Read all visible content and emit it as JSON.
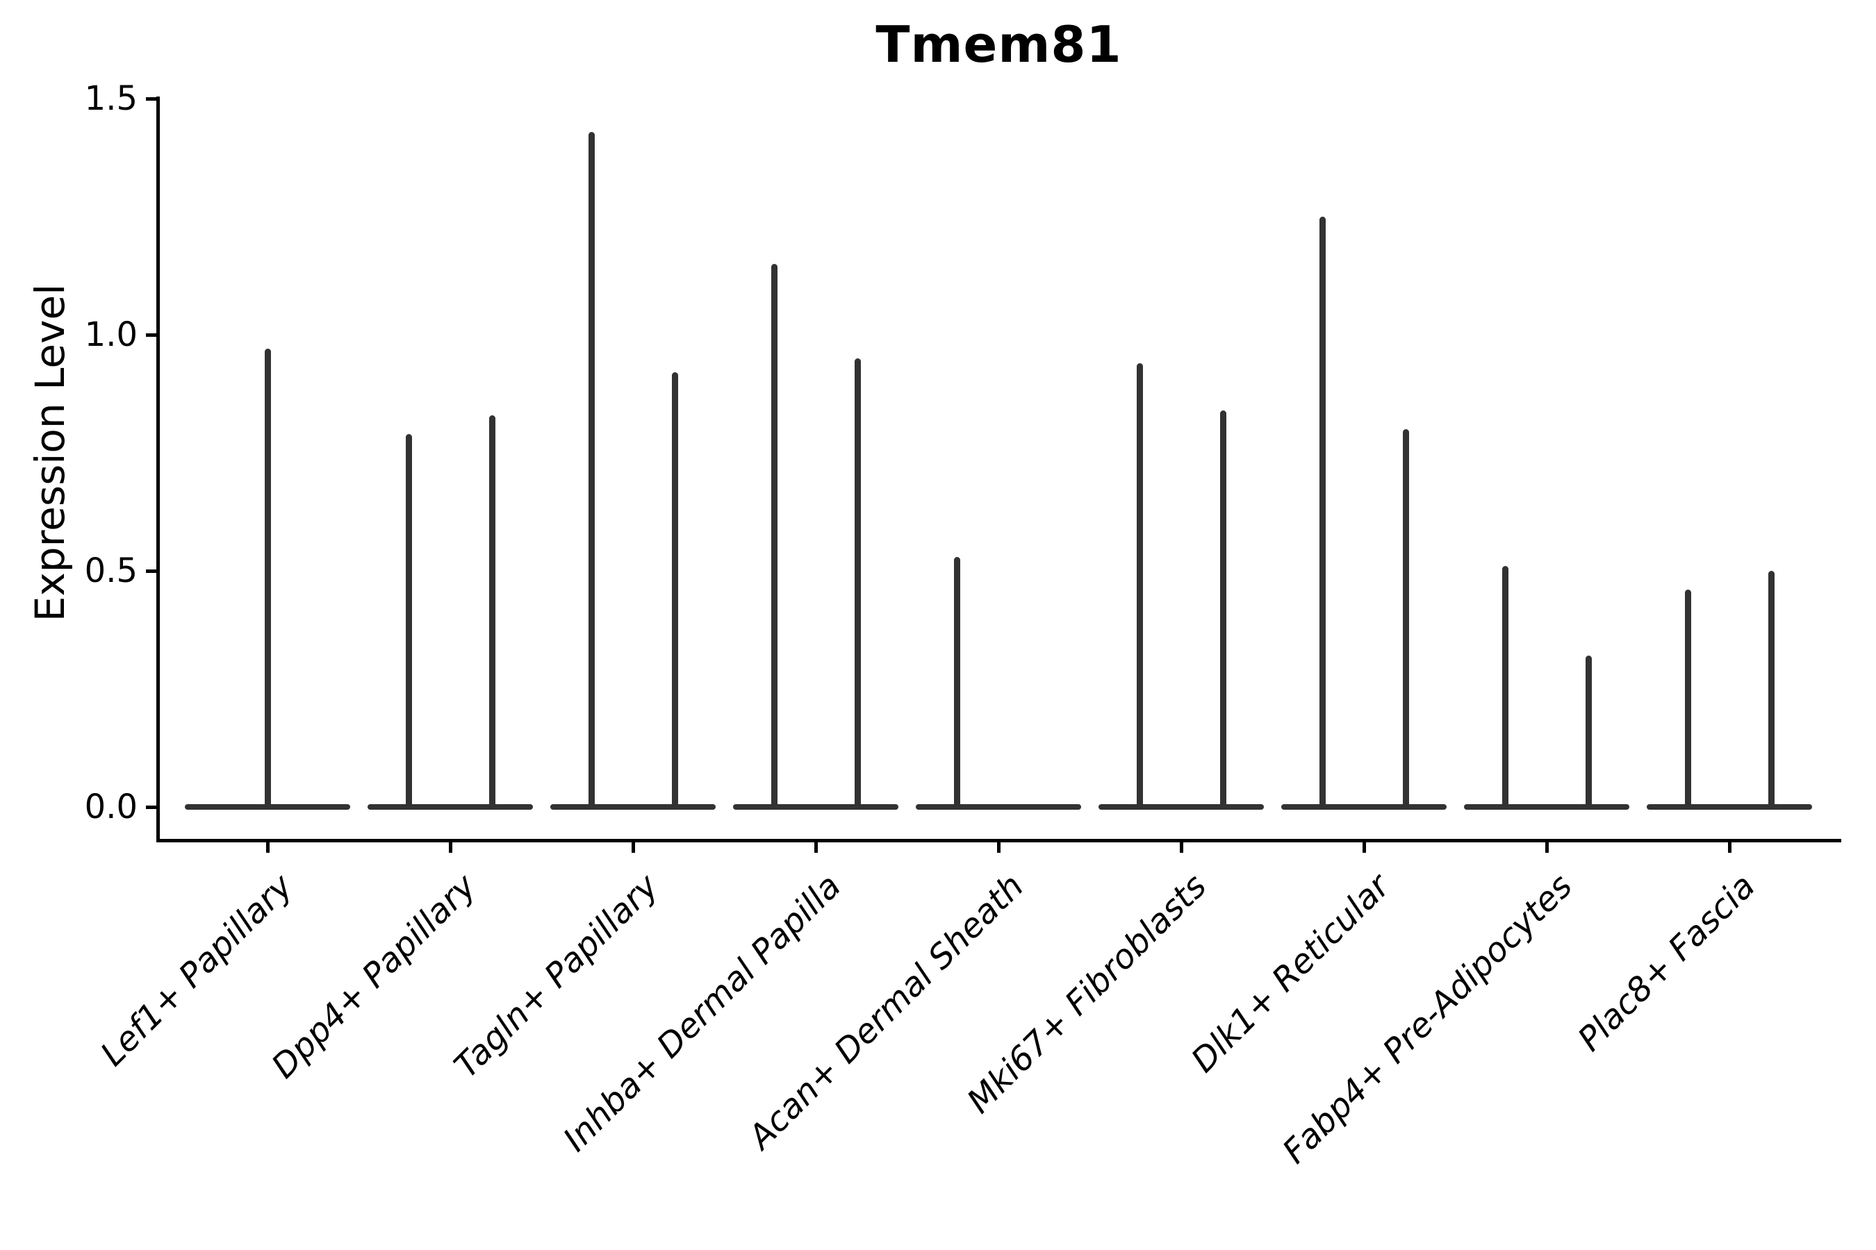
{
  "title": "Tmem81",
  "chart_data": {
    "type": "violin",
    "title": "Tmem81",
    "xlabel": "",
    "ylabel": "Expression Level",
    "ylim": [
      0,
      1.5
    ],
    "yticks": [
      0.0,
      0.5,
      1.0,
      1.5
    ],
    "ytick_labels": [
      "0.0",
      "0.5",
      "1.0",
      "1.5"
    ],
    "grid": false,
    "legend_position": "none",
    "background_color": "#ffffff",
    "axis_color": "#000000",
    "ink_color": "#323232",
    "categories": [
      "Lef1+ Papillary",
      "Dpp4+ Papillary",
      "Tagln+ Papillary",
      "Inhba+ Dermal Papilla",
      "Acan+ Dermal Sheath",
      "Mki67+ Fibroblasts",
      "Dlk1+ Reticular",
      "Fabp4+ Pre-Adipocytes",
      "Plac8+ Fascia"
    ],
    "violins": [
      {
        "category": "Lef1+ Papillary",
        "spikes": [
          {
            "position": "center",
            "max_expression": 0.97
          }
        ]
      },
      {
        "category": "Dpp4+ Papillary",
        "spikes": [
          {
            "position": "left",
            "max_expression": 0.79
          },
          {
            "position": "right",
            "max_expression": 0.83
          }
        ]
      },
      {
        "category": "Tagln+ Papillary",
        "spikes": [
          {
            "position": "left",
            "max_expression": 1.43
          },
          {
            "position": "right",
            "max_expression": 0.92
          }
        ]
      },
      {
        "category": "Inhba+ Dermal Papilla",
        "spikes": [
          {
            "position": "left",
            "max_expression": 1.15
          },
          {
            "position": "right",
            "max_expression": 0.95
          }
        ]
      },
      {
        "category": "Acan+ Dermal Sheath",
        "spikes": [
          {
            "position": "left",
            "max_expression": 0.53
          }
        ]
      },
      {
        "category": "Mki67+ Fibroblasts",
        "spikes": [
          {
            "position": "left",
            "max_expression": 0.94
          },
          {
            "position": "right",
            "max_expression": 0.84
          }
        ]
      },
      {
        "category": "Dlk1+ Reticular",
        "spikes": [
          {
            "position": "left",
            "max_expression": 1.25
          },
          {
            "position": "right",
            "max_expression": 0.8
          }
        ]
      },
      {
        "category": "Fabp4+ Pre-Adipocytes",
        "spikes": [
          {
            "position": "left",
            "max_expression": 0.51
          },
          {
            "position": "right",
            "max_expression": 0.32
          }
        ]
      },
      {
        "category": "Plac8+ Fascia",
        "spikes": [
          {
            "position": "left",
            "max_expression": 0.46
          },
          {
            "position": "right",
            "max_expression": 0.5
          }
        ]
      }
    ]
  }
}
